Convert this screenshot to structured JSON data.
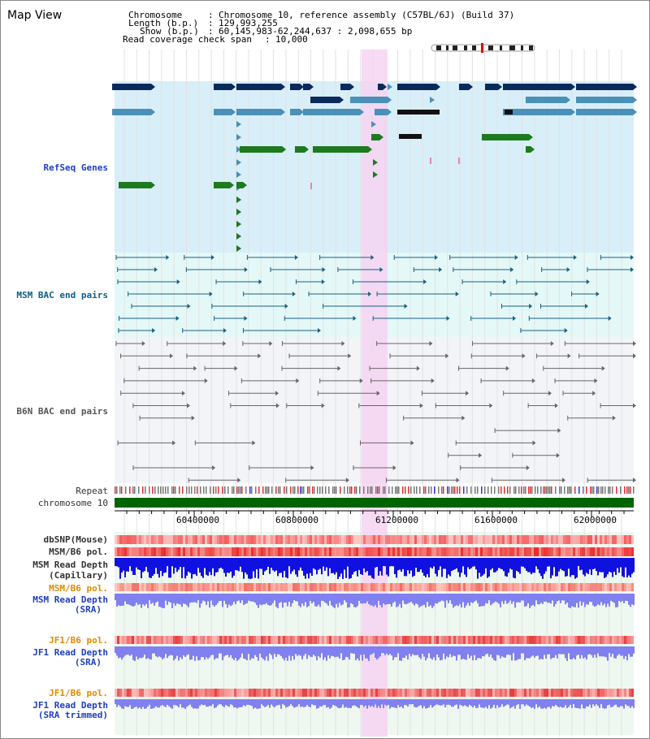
{
  "title": "Map View",
  "header": {
    "chromosome_key": "Chromosome",
    "chromosome_val": "Chromosome 10, reference assembly (C57BL/6J) (Build 37)",
    "length_key": "Length (b.p.)",
    "length_val": "129,993,255",
    "show_key": "Show (b.p.)",
    "show_val": "60,145,983-62,244,637 : 2,098,655 bp",
    "coverage_key": "Read coverage check span",
    "coverage_val": "10,000"
  },
  "tracks": {
    "refseq": "RefSeq Genes",
    "msm_bac": "MSM BAC end pairs",
    "b6n_bac": "B6N BAC end pairs",
    "repeat": "Repeat",
    "chromosome": "chromosome 10",
    "dbsnp": "dbSNP(Mouse)",
    "msm_b6_pol_1": "MSM/B6 pol.",
    "msm_read_depth_cap_1": "MSM Read Depth",
    "msm_read_depth_cap_2": "(Capillary)",
    "msm_b6_pol_2": "MSM/B6 pol.",
    "msm_read_depth_sra_1": "MSM Read Depth",
    "msm_read_depth_sra_2": "(SRA)",
    "jf1_b6_pol_1": "JF1/B6 pol.",
    "jf1_read_depth_sra_1": "JF1 Read Depth",
    "jf1_read_depth_sra_2": "(SRA)",
    "jf1_b6_pol_2": "JF1/B6 pol.",
    "jf1_read_depth_trim_1": "JF1 Read Depth",
    "jf1_read_depth_trim_2": "(SRA trimmed)"
  },
  "axis": {
    "ticks": [
      "60400000",
      "60800000",
      "61200000",
      "61600000",
      "62000000"
    ]
  },
  "colors": {
    "refseq_bg": "#d8eef8",
    "msm_bg": "#e4f8f8",
    "b6n_bg": "#f2f4f8",
    "highlight": "#f6d4f2",
    "chromosome_bar": "#006400",
    "navy": "#0a2a5c",
    "steel": "#4a90b8",
    "green": "#1e7a1e",
    "teal_line": "#1a6080",
    "depth_blue": "#1010e0",
    "depth_light": "#8080f0"
  }
}
